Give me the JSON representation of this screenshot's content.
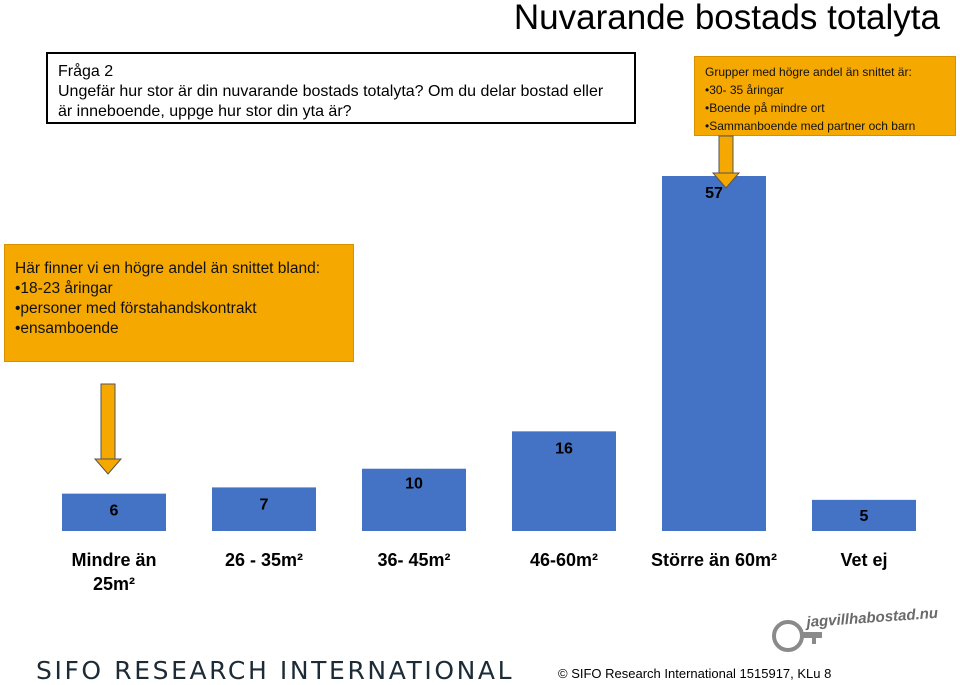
{
  "title": "Nuvarande bostads totalyta",
  "question": {
    "lines": [
      "Fråga 2",
      "Ungefär hur stor är din nuvarande bostads totalyta? Om du delar bostad eller",
      "är inneboende, uppge hur stor din yta är?"
    ]
  },
  "note_right": {
    "lines": [
      "Grupper med högre andel än snittet är:",
      "•30- 35 åringar",
      "•Boende på mindre ort",
      "•Sammanboende med partner och barn"
    ]
  },
  "note_left": {
    "lines": [
      "Här finner vi en högre andel än snittet bland:",
      "•18-23 åringar",
      "•personer med förstahandskontrakt",
      "•ensamboende"
    ]
  },
  "chart_data": {
    "type": "bar",
    "categories": [
      "Mindre än 25m²",
      "26 - 35m²",
      "36- 45m²",
      "46-60m²",
      "Större än 60m²",
      "Vet ej"
    ],
    "category_lines": [
      [
        "Mindre än",
        "25m²"
      ],
      [
        "26 - 35m²"
      ],
      [
        "36- 45m²"
      ],
      [
        "46-60m²"
      ],
      [
        "Större än 60m²"
      ],
      [
        "Vet ej"
      ]
    ],
    "values": [
      6,
      7,
      10,
      16,
      57,
      5
    ],
    "bar_color": "#4472c4",
    "callout_color": "#f5a800"
  },
  "footer": {
    "brand": "SIFO RESEARCH INTERNATIONAL",
    "copyright": "©  SIFO Research International 1515917, KLu 8",
    "watermark": "jagvillhabostad.nu"
  }
}
